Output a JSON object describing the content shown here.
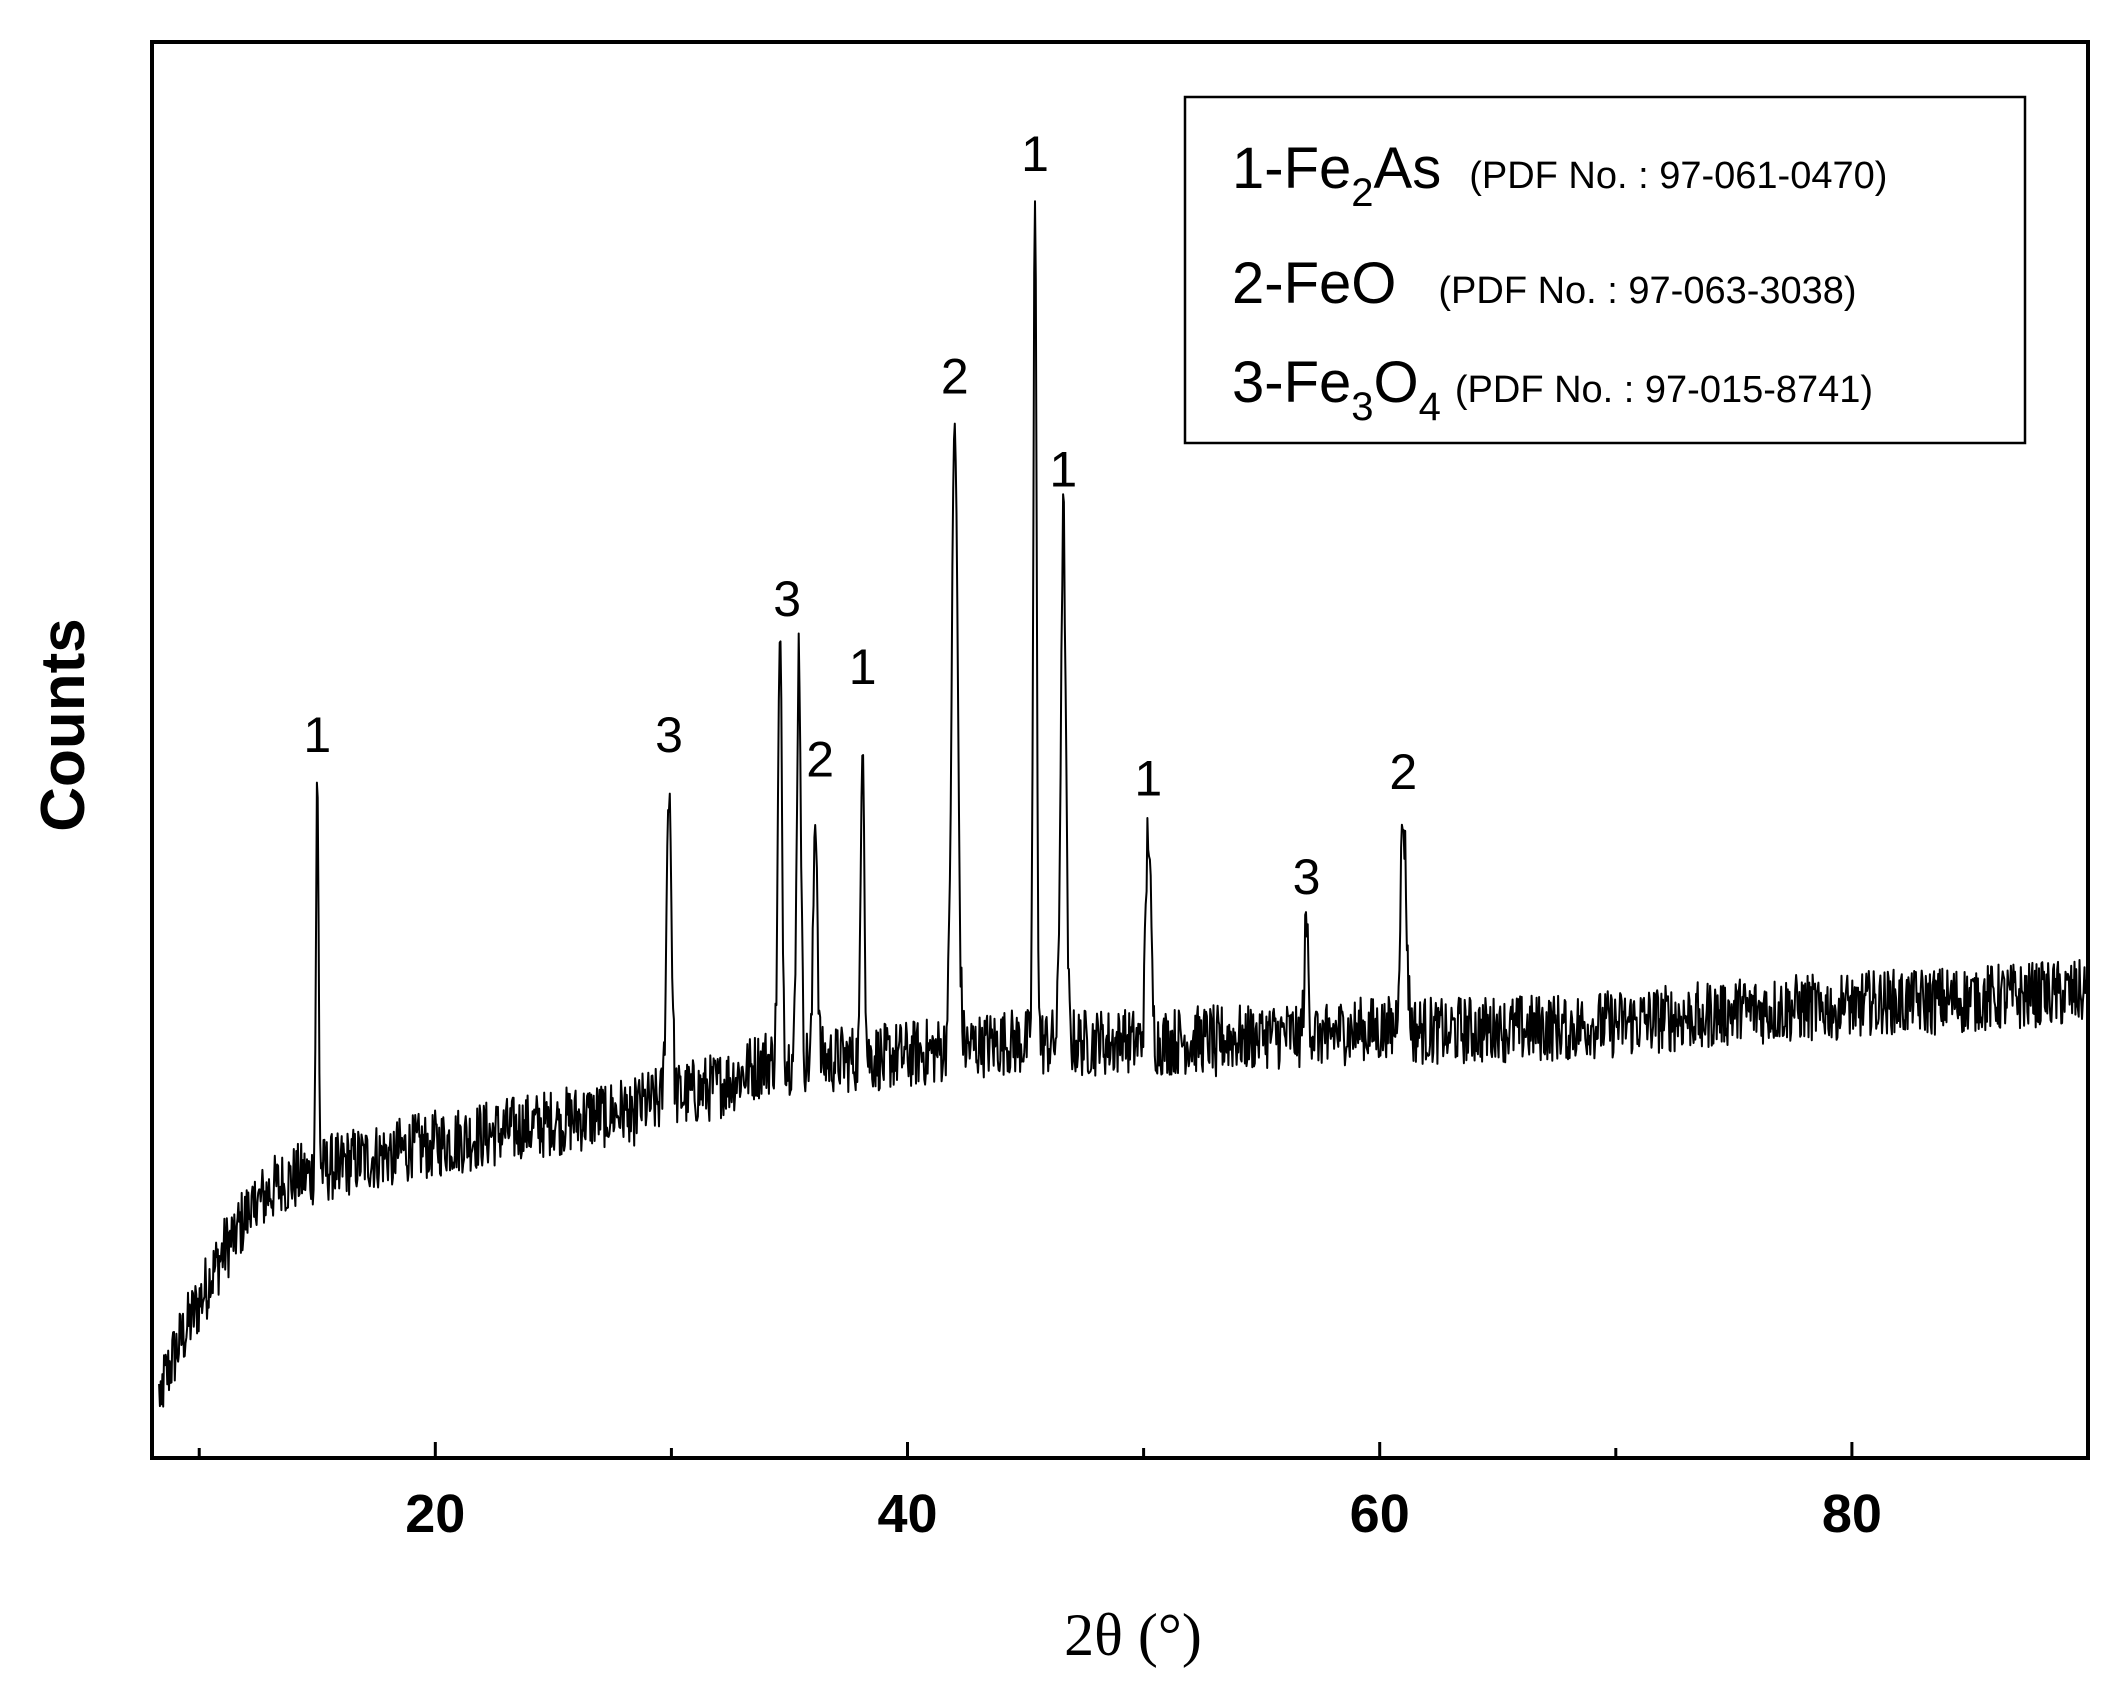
{
  "chart_data": {
    "type": "line",
    "title": "",
    "xlabel": "2θ (°)",
    "ylabel": "Counts",
    "xlim": [
      8,
      90
    ],
    "ylim": [
      0,
      1000
    ],
    "xticks": [
      20,
      40,
      60,
      80
    ],
    "yticks_visible": false,
    "grid": false,
    "legend": {
      "placement": "top-right",
      "entries": [
        {
          "num": "1",
          "name_parts": [
            "-Fe",
            "2",
            "As"
          ],
          "ref": "(PDF No. : 97-061-0470)"
        },
        {
          "num": "2",
          "name_parts": [
            "-FeO",
            "",
            ""
          ],
          "ref": "(PDF No. : 97-063-3038)"
        },
        {
          "num": "3",
          "name_parts": [
            "-Fe",
            "3",
            "O",
            "4"
          ],
          "ref": "(PDF No. : 97-015-8741)"
        }
      ]
    },
    "series": [
      {
        "style": "noisy-line",
        "color": "#000000",
        "baseline": [
          [
            8,
            20
          ],
          [
            9,
            70
          ],
          [
            10,
            110
          ],
          [
            11,
            150
          ],
          [
            12,
            180
          ],
          [
            13,
            200
          ],
          [
            14,
            210
          ],
          [
            15,
            215
          ],
          [
            16,
            222
          ],
          [
            18,
            230
          ],
          [
            20,
            238
          ],
          [
            22,
            245
          ],
          [
            25,
            255
          ],
          [
            28,
            265
          ],
          [
            30,
            275
          ],
          [
            32,
            285
          ],
          [
            33,
            295
          ],
          [
            34,
            305
          ],
          [
            36,
            305
          ],
          [
            40,
            310
          ],
          [
            44,
            320
          ],
          [
            48,
            320
          ],
          [
            50,
            320
          ],
          [
            55,
            325
          ],
          [
            60,
            330
          ],
          [
            65,
            330
          ],
          [
            70,
            335
          ],
          [
            75,
            345
          ],
          [
            80,
            350
          ],
          [
            85,
            355
          ],
          [
            90,
            360
          ]
        ],
        "peaks": [
          {
            "x": 15.0,
            "y": 530,
            "w": 0.08
          },
          {
            "x": 29.9,
            "y": 530,
            "w": 0.15
          },
          {
            "x": 34.6,
            "y": 640,
            "w": 0.12
          },
          {
            "x": 35.4,
            "y": 640,
            "w": 0.12
          },
          {
            "x": 36.1,
            "y": 510,
            "w": 0.12
          },
          {
            "x": 38.1,
            "y": 585,
            "w": 0.1
          },
          {
            "x": 42.0,
            "y": 820,
            "w": 0.18
          },
          {
            "x": 45.4,
            "y": 1000,
            "w": 0.1
          },
          {
            "x": 46.6,
            "y": 745,
            "w": 0.15
          },
          {
            "x": 50.2,
            "y": 495,
            "w": 0.15
          },
          {
            "x": 56.9,
            "y": 415,
            "w": 0.12
          },
          {
            "x": 61.0,
            "y": 500,
            "w": 0.18
          }
        ],
        "noise_amplitude": 28
      }
    ],
    "annotations": [
      {
        "text": "1",
        "x": 15.0,
        "y": 555
      },
      {
        "text": "3",
        "x": 29.9,
        "y": 555
      },
      {
        "text": "3",
        "x": 34.9,
        "y": 665
      },
      {
        "text": "2",
        "x": 36.3,
        "y": 535
      },
      {
        "text": "1",
        "x": 38.1,
        "y": 610
      },
      {
        "text": "2",
        "x": 42.0,
        "y": 845
      },
      {
        "text": "1",
        "x": 45.4,
        "y": 1025
      },
      {
        "text": "1",
        "x": 46.6,
        "y": 770
      },
      {
        "text": "1",
        "x": 50.2,
        "y": 520
      },
      {
        "text": "3",
        "x": 56.9,
        "y": 440
      },
      {
        "text": "2",
        "x": 61.0,
        "y": 525
      }
    ]
  }
}
